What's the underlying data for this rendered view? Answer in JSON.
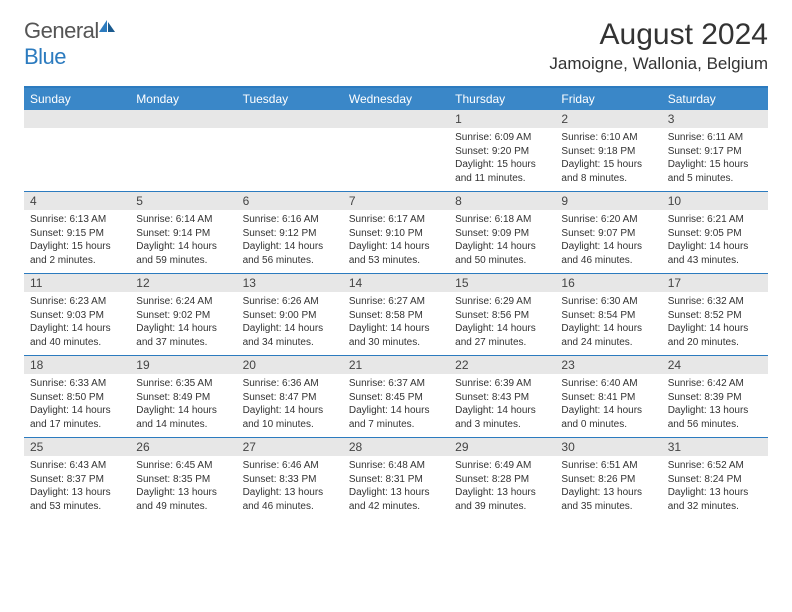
{
  "brand": {
    "part1": "General",
    "part2": "Blue"
  },
  "title": {
    "month": "August 2024",
    "location": "Jamoigne, Wallonia, Belgium"
  },
  "colors": {
    "header_bar": "#3a87c8",
    "border": "#2c7bbf",
    "daynum_bg": "#e7e7e7",
    "text": "#333333",
    "logo_gray": "#555555",
    "logo_blue": "#2c7bbf",
    "background": "#ffffff"
  },
  "day_headers": [
    "Sunday",
    "Monday",
    "Tuesday",
    "Wednesday",
    "Thursday",
    "Friday",
    "Saturday"
  ],
  "weeks": [
    [
      {
        "num": "",
        "sunrise": "",
        "sunset": "",
        "daylight": ""
      },
      {
        "num": "",
        "sunrise": "",
        "sunset": "",
        "daylight": ""
      },
      {
        "num": "",
        "sunrise": "",
        "sunset": "",
        "daylight": ""
      },
      {
        "num": "",
        "sunrise": "",
        "sunset": "",
        "daylight": ""
      },
      {
        "num": "1",
        "sunrise": "Sunrise: 6:09 AM",
        "sunset": "Sunset: 9:20 PM",
        "daylight": "Daylight: 15 hours and 11 minutes."
      },
      {
        "num": "2",
        "sunrise": "Sunrise: 6:10 AM",
        "sunset": "Sunset: 9:18 PM",
        "daylight": "Daylight: 15 hours and 8 minutes."
      },
      {
        "num": "3",
        "sunrise": "Sunrise: 6:11 AM",
        "sunset": "Sunset: 9:17 PM",
        "daylight": "Daylight: 15 hours and 5 minutes."
      }
    ],
    [
      {
        "num": "4",
        "sunrise": "Sunrise: 6:13 AM",
        "sunset": "Sunset: 9:15 PM",
        "daylight": "Daylight: 15 hours and 2 minutes."
      },
      {
        "num": "5",
        "sunrise": "Sunrise: 6:14 AM",
        "sunset": "Sunset: 9:14 PM",
        "daylight": "Daylight: 14 hours and 59 minutes."
      },
      {
        "num": "6",
        "sunrise": "Sunrise: 6:16 AM",
        "sunset": "Sunset: 9:12 PM",
        "daylight": "Daylight: 14 hours and 56 minutes."
      },
      {
        "num": "7",
        "sunrise": "Sunrise: 6:17 AM",
        "sunset": "Sunset: 9:10 PM",
        "daylight": "Daylight: 14 hours and 53 minutes."
      },
      {
        "num": "8",
        "sunrise": "Sunrise: 6:18 AM",
        "sunset": "Sunset: 9:09 PM",
        "daylight": "Daylight: 14 hours and 50 minutes."
      },
      {
        "num": "9",
        "sunrise": "Sunrise: 6:20 AM",
        "sunset": "Sunset: 9:07 PM",
        "daylight": "Daylight: 14 hours and 46 minutes."
      },
      {
        "num": "10",
        "sunrise": "Sunrise: 6:21 AM",
        "sunset": "Sunset: 9:05 PM",
        "daylight": "Daylight: 14 hours and 43 minutes."
      }
    ],
    [
      {
        "num": "11",
        "sunrise": "Sunrise: 6:23 AM",
        "sunset": "Sunset: 9:03 PM",
        "daylight": "Daylight: 14 hours and 40 minutes."
      },
      {
        "num": "12",
        "sunrise": "Sunrise: 6:24 AM",
        "sunset": "Sunset: 9:02 PM",
        "daylight": "Daylight: 14 hours and 37 minutes."
      },
      {
        "num": "13",
        "sunrise": "Sunrise: 6:26 AM",
        "sunset": "Sunset: 9:00 PM",
        "daylight": "Daylight: 14 hours and 34 minutes."
      },
      {
        "num": "14",
        "sunrise": "Sunrise: 6:27 AM",
        "sunset": "Sunset: 8:58 PM",
        "daylight": "Daylight: 14 hours and 30 minutes."
      },
      {
        "num": "15",
        "sunrise": "Sunrise: 6:29 AM",
        "sunset": "Sunset: 8:56 PM",
        "daylight": "Daylight: 14 hours and 27 minutes."
      },
      {
        "num": "16",
        "sunrise": "Sunrise: 6:30 AM",
        "sunset": "Sunset: 8:54 PM",
        "daylight": "Daylight: 14 hours and 24 minutes."
      },
      {
        "num": "17",
        "sunrise": "Sunrise: 6:32 AM",
        "sunset": "Sunset: 8:52 PM",
        "daylight": "Daylight: 14 hours and 20 minutes."
      }
    ],
    [
      {
        "num": "18",
        "sunrise": "Sunrise: 6:33 AM",
        "sunset": "Sunset: 8:50 PM",
        "daylight": "Daylight: 14 hours and 17 minutes."
      },
      {
        "num": "19",
        "sunrise": "Sunrise: 6:35 AM",
        "sunset": "Sunset: 8:49 PM",
        "daylight": "Daylight: 14 hours and 14 minutes."
      },
      {
        "num": "20",
        "sunrise": "Sunrise: 6:36 AM",
        "sunset": "Sunset: 8:47 PM",
        "daylight": "Daylight: 14 hours and 10 minutes."
      },
      {
        "num": "21",
        "sunrise": "Sunrise: 6:37 AM",
        "sunset": "Sunset: 8:45 PM",
        "daylight": "Daylight: 14 hours and 7 minutes."
      },
      {
        "num": "22",
        "sunrise": "Sunrise: 6:39 AM",
        "sunset": "Sunset: 8:43 PM",
        "daylight": "Daylight: 14 hours and 3 minutes."
      },
      {
        "num": "23",
        "sunrise": "Sunrise: 6:40 AM",
        "sunset": "Sunset: 8:41 PM",
        "daylight": "Daylight: 14 hours and 0 minutes."
      },
      {
        "num": "24",
        "sunrise": "Sunrise: 6:42 AM",
        "sunset": "Sunset: 8:39 PM",
        "daylight": "Daylight: 13 hours and 56 minutes."
      }
    ],
    [
      {
        "num": "25",
        "sunrise": "Sunrise: 6:43 AM",
        "sunset": "Sunset: 8:37 PM",
        "daylight": "Daylight: 13 hours and 53 minutes."
      },
      {
        "num": "26",
        "sunrise": "Sunrise: 6:45 AM",
        "sunset": "Sunset: 8:35 PM",
        "daylight": "Daylight: 13 hours and 49 minutes."
      },
      {
        "num": "27",
        "sunrise": "Sunrise: 6:46 AM",
        "sunset": "Sunset: 8:33 PM",
        "daylight": "Daylight: 13 hours and 46 minutes."
      },
      {
        "num": "28",
        "sunrise": "Sunrise: 6:48 AM",
        "sunset": "Sunset: 8:31 PM",
        "daylight": "Daylight: 13 hours and 42 minutes."
      },
      {
        "num": "29",
        "sunrise": "Sunrise: 6:49 AM",
        "sunset": "Sunset: 8:28 PM",
        "daylight": "Daylight: 13 hours and 39 minutes."
      },
      {
        "num": "30",
        "sunrise": "Sunrise: 6:51 AM",
        "sunset": "Sunset: 8:26 PM",
        "daylight": "Daylight: 13 hours and 35 minutes."
      },
      {
        "num": "31",
        "sunrise": "Sunrise: 6:52 AM",
        "sunset": "Sunset: 8:24 PM",
        "daylight": "Daylight: 13 hours and 32 minutes."
      }
    ]
  ]
}
